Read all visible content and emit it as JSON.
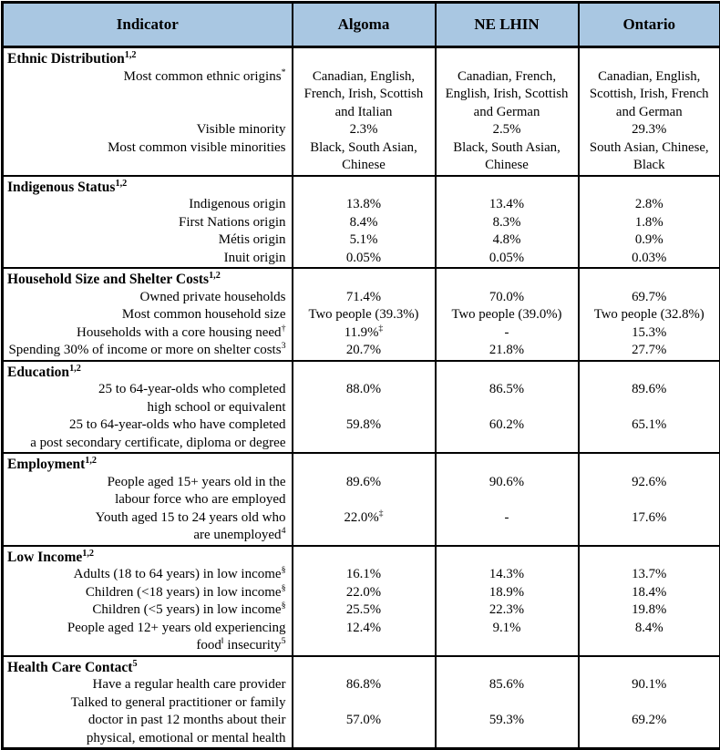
{
  "colors": {
    "header_bg": "#a9c7e2",
    "border": "#000000",
    "text": "#000000"
  },
  "header": {
    "indicator": "Indicator",
    "algoma": "Algoma",
    "ne_lhin": "NE LHIN",
    "ontario": "Ontario"
  },
  "sections": [
    {
      "title": "Ethnic Distribution",
      "sup": "1,2",
      "rows": [
        {
          "label": "Most common ethnic origins",
          "sup": "*",
          "values": [
            "Canadian, English,\nFrench, Irish, Scottish\nand Italian",
            "Canadian, French,\nEnglish, Irish, Scottish\nand German",
            "Canadian, English,\nScottish, Irish, French\nand German"
          ]
        },
        {
          "label": "Visible minority",
          "values": [
            "2.3%",
            "2.5%",
            "29.3%"
          ]
        },
        {
          "label": "Most common visible minorities",
          "values": [
            "Black, South Asian,\nChinese",
            "Black, South Asian,\nChinese",
            "South Asian, Chinese,\nBlack"
          ]
        }
      ]
    },
    {
      "title": "Indigenous Status",
      "sup": "1,2",
      "rows": [
        {
          "label": "Indigenous origin",
          "values": [
            "13.8%",
            "13.4%",
            "2.8%"
          ]
        },
        {
          "label": "First Nations origin",
          "values": [
            "8.4%",
            "8.3%",
            "1.8%"
          ]
        },
        {
          "label": "Métis origin",
          "values": [
            "5.1%",
            "4.8%",
            "0.9%"
          ]
        },
        {
          "label": "Inuit origin",
          "values": [
            "0.05%",
            "0.05%",
            "0.03%"
          ]
        }
      ]
    },
    {
      "title": "Household Size and Shelter Costs",
      "sup": "1,2",
      "rows": [
        {
          "label": "Owned private households",
          "values": [
            "71.4%",
            "70.0%",
            "69.7%"
          ]
        },
        {
          "label": "Most common household size",
          "values": [
            "Two people (39.3%)",
            "Two people (39.0%)",
            "Two people (32.8%)"
          ]
        },
        {
          "label": "Households with a core housing need",
          "sup": "†",
          "values": [
            "11.9%",
            "-",
            "15.3%"
          ],
          "value_sups": [
            "‡",
            "",
            ""
          ]
        },
        {
          "label": "Spending 30% of income or more on shelter costs",
          "sup": "3",
          "values": [
            "20.7%",
            "21.8%",
            "27.7%"
          ]
        }
      ]
    },
    {
      "title": "Education",
      "sup": "1,2",
      "rows": [
        {
          "label": "25 to 64-year-olds who completed\nhigh school or equivalent",
          "values": [
            "88.0%",
            "86.5%",
            "89.6%"
          ]
        },
        {
          "label": "25 to 64-year-olds who have completed\na post secondary certificate, diploma or degree",
          "values": [
            "59.8%",
            "60.2%",
            "65.1%"
          ]
        }
      ]
    },
    {
      "title": "Employment",
      "sup": "1,2",
      "rows": [
        {
          "label": "People aged 15+ years old in the\nlabour force who are employed",
          "values": [
            "89.6%",
            "90.6%",
            "92.6%"
          ]
        },
        {
          "label": "Youth aged 15 to 24 years old who\nare unemployed",
          "sup": "4",
          "values": [
            "22.0%",
            "-",
            "17.6%"
          ],
          "value_sups": [
            "‡",
            "",
            ""
          ]
        }
      ]
    },
    {
      "title": "Low Income",
      "sup": "1,2",
      "rows": [
        {
          "label": "Adults (18 to 64 years) in low income",
          "sup": "§",
          "values": [
            "16.1%",
            "14.3%",
            "13.7%"
          ]
        },
        {
          "label": "Children (<18 years) in low income",
          "sup": "§",
          "values": [
            "22.0%",
            "18.9%",
            "18.4%"
          ]
        },
        {
          "label": "Children (<5 years) in low income",
          "sup": "§",
          "values": [
            "25.5%",
            "22.3%",
            "19.8%"
          ]
        },
        {
          "label": "People aged 12+ years old experiencing\nfood",
          "sup": "‖",
          "label2": " insecurity",
          "sup2": "5",
          "values": [
            "12.4%",
            "9.1%",
            "8.4%"
          ]
        }
      ]
    },
    {
      "title": "Health Care Contact",
      "sup": "5",
      "rows": [
        {
          "label": "Have a regular health care provider",
          "values": [
            "86.8%",
            "85.6%",
            "90.1%"
          ]
        },
        {
          "label": "Talked to general practitioner or family\ndoctor in past 12 months about their\nphysical, emotional or mental health",
          "values": [
            "57.0%",
            "59.3%",
            "69.2%"
          ]
        }
      ]
    }
  ]
}
